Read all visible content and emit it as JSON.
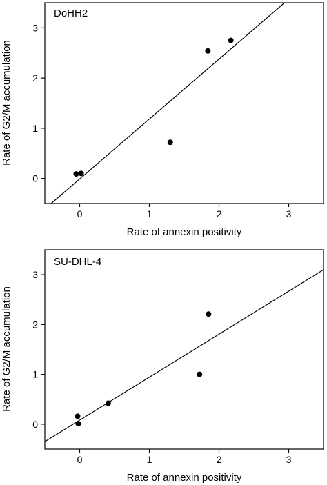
{
  "chart_data": [
    {
      "type": "scatter",
      "title": "DoHH2",
      "xlabel": "Rate of annexin positivity",
      "ylabel": "Rate of G2/M accumulation",
      "xlim": [
        -0.5,
        3.5
      ],
      "ylim": [
        -0.5,
        3.5
      ],
      "xticks": [
        0,
        1,
        2,
        3
      ],
      "yticks": [
        0,
        1,
        2,
        3
      ],
      "xtick_labels": [
        "0",
        "1",
        "2",
        "3"
      ],
      "ytick_labels": [
        "0",
        "1",
        "2",
        "3"
      ],
      "grid": false,
      "points": [
        {
          "x": -0.05,
          "y": 0.09
        },
        {
          "x": 0.02,
          "y": 0.1
        },
        {
          "x": 1.3,
          "y": 0.72
        },
        {
          "x": 1.84,
          "y": 2.54
        },
        {
          "x": 2.17,
          "y": 2.75
        }
      ],
      "fit_line": [
        {
          "x": -0.41,
          "y": -0.5
        },
        {
          "x": 2.94,
          "y": 3.5
        }
      ]
    },
    {
      "type": "scatter",
      "title": "SU-DHL-4",
      "xlabel": "Rate of annexin positivity",
      "ylabel": "Rate of G2/M accumulation",
      "xlim": [
        -0.5,
        3.5
      ],
      "ylim": [
        -0.5,
        3.5
      ],
      "xticks": [
        0,
        1,
        2,
        3
      ],
      "yticks": [
        0,
        1,
        2,
        3
      ],
      "xtick_labels": [
        "0",
        "1",
        "2",
        "3"
      ],
      "ytick_labels": [
        "0",
        "1",
        "2",
        "3"
      ],
      "grid": false,
      "points": [
        {
          "x": -0.03,
          "y": 0.16
        },
        {
          "x": -0.02,
          "y": 0.01
        },
        {
          "x": 0.41,
          "y": 0.42
        },
        {
          "x": 1.72,
          "y": 1.0
        },
        {
          "x": 1.85,
          "y": 2.21
        }
      ],
      "fit_line": [
        {
          "x": -0.5,
          "y": -0.35
        },
        {
          "x": 3.5,
          "y": 3.1
        }
      ]
    }
  ]
}
